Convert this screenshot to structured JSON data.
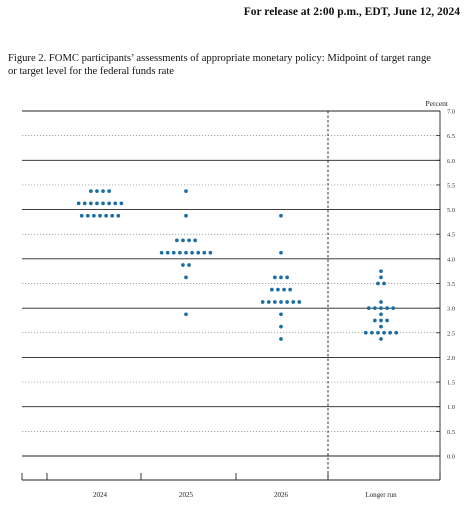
{
  "release_note": "For release at 2:00 p.m., EDT, June 12, 2024",
  "caption_line1": "Figure 2.  FOMC participants’ assessments of appropriate monetary policy:  Midpoint of target range",
  "caption_line2": "or target level for the federal funds rate",
  "chart_data": {
    "type": "scatter",
    "ylabel": "Percent",
    "ylim": [
      0,
      7
    ],
    "yticks": [
      "0.0",
      "0.5",
      "1.0",
      "1.5",
      "2.0",
      "2.5",
      "3.0",
      "3.5",
      "4.0",
      "4.5",
      "5.0",
      "5.5",
      "6.0",
      "6.5",
      "7.0"
    ],
    "categories": [
      "2024",
      "2025",
      "2026",
      "Longer run"
    ],
    "grid": true,
    "colors": {
      "dot": "#1b6ea5",
      "axis": "#222222",
      "grid": "#888888"
    },
    "series": [
      {
        "category": "2024",
        "points": [
          {
            "y": 5.375,
            "count": 4
          },
          {
            "y": 5.125,
            "count": 8
          },
          {
            "y": 4.875,
            "count": 7
          }
        ]
      },
      {
        "category": "2025",
        "points": [
          {
            "y": 5.375,
            "count": 1
          },
          {
            "y": 4.875,
            "count": 1
          },
          {
            "y": 4.375,
            "count": 4
          },
          {
            "y": 4.125,
            "count": 9
          },
          {
            "y": 3.875,
            "count": 2
          },
          {
            "y": 3.625,
            "count": 1
          },
          {
            "y": 2.875,
            "count": 1
          }
        ]
      },
      {
        "category": "2026",
        "points": [
          {
            "y": 4.875,
            "count": 1
          },
          {
            "y": 4.125,
            "count": 1
          },
          {
            "y": 3.625,
            "count": 3
          },
          {
            "y": 3.375,
            "count": 4
          },
          {
            "y": 3.125,
            "count": 7
          },
          {
            "y": 2.875,
            "count": 1
          },
          {
            "y": 2.625,
            "count": 1
          },
          {
            "y": 2.375,
            "count": 1
          }
        ]
      },
      {
        "category": "Longer run",
        "points": [
          {
            "y": 3.75,
            "count": 1
          },
          {
            "y": 3.625,
            "count": 1
          },
          {
            "y": 3.5,
            "count": 2
          },
          {
            "y": 3.125,
            "count": 1
          },
          {
            "y": 3.0,
            "count": 5
          },
          {
            "y": 2.875,
            "count": 1
          },
          {
            "y": 2.75,
            "count": 3
          },
          {
            "y": 2.625,
            "count": 1
          },
          {
            "y": 2.5,
            "count": 6
          },
          {
            "y": 2.375,
            "count": 1
          }
        ]
      }
    ]
  }
}
